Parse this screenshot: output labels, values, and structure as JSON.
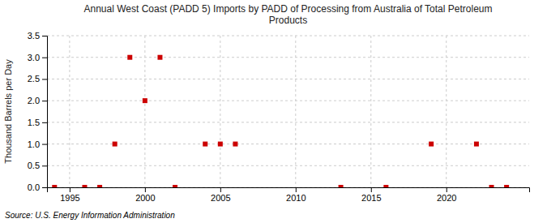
{
  "chart_data": {
    "type": "scatter",
    "title": "Annual West Coast (PADD 5) Imports by PADD of Processing from Australia of Total Petroleum\nProducts",
    "ylabel": "Thousand Barrels per Day",
    "annotations": [
      "Source: U.S. Energy Information Administration"
    ],
    "x": [
      1994,
      1996,
      1997,
      1998,
      1999,
      2000,
      2001,
      2002,
      2004,
      2005,
      2006,
      2013,
      2016,
      2019,
      2022,
      2023,
      2024
    ],
    "values": [
      0.0,
      0.0,
      0.0,
      1.0,
      3.0,
      2.0,
      3.0,
      0.0,
      1.0,
      1.0,
      1.0,
      0.0,
      0.0,
      1.0,
      1.0,
      0.0,
      0.0
    ],
    "color": "#cc0000",
    "marker": "square",
    "xlim": [
      1993.5,
      2025.5
    ],
    "ylim": [
      0.0,
      3.5
    ],
    "xticks": [
      1995,
      2000,
      2005,
      2010,
      2015,
      2020
    ],
    "yticks": [
      {
        "value": 0.0,
        "label": "0.0"
      },
      0.5,
      {
        "value": 1.0,
        "label": "1.0"
      },
      1.5,
      {
        "value": 2.0,
        "label": "2.0"
      },
      2.5,
      {
        "value": 3.0,
        "label": "3.0"
      },
      3.5
    ],
    "grid": true
  }
}
